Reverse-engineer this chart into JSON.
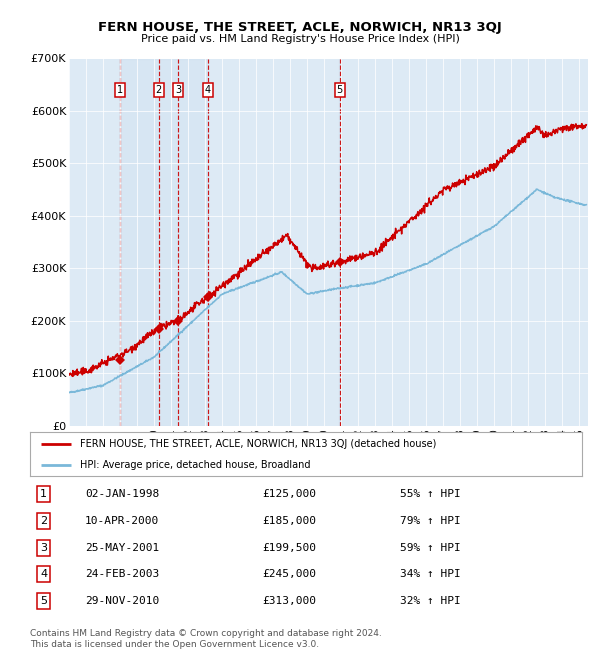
{
  "title": "FERN HOUSE, THE STREET, ACLE, NORWICH, NR13 3QJ",
  "subtitle": "Price paid vs. HM Land Registry's House Price Index (HPI)",
  "legend_line1": "FERN HOUSE, THE STREET, ACLE, NORWICH, NR13 3QJ (detached house)",
  "legend_line2": "HPI: Average price, detached house, Broadland",
  "footer": "Contains HM Land Registry data © Crown copyright and database right 2024.\nThis data is licensed under the Open Government Licence v3.0.",
  "hpi_color": "#7ab8d9",
  "price_color": "#cc0000",
  "background_color": "#ddeaf5",
  "transactions": [
    {
      "num": 1,
      "date": "02-JAN-1998",
      "price": 125000,
      "year": 1998.02,
      "pct": "55%",
      "dir": "↑"
    },
    {
      "num": 2,
      "date": "10-APR-2000",
      "price": 185000,
      "year": 2000.27,
      "pct": "79%",
      "dir": "↑"
    },
    {
      "num": 3,
      "date": "25-MAY-2001",
      "price": 199500,
      "year": 2001.4,
      "pct": "59%",
      "dir": "↑"
    },
    {
      "num": 4,
      "date": "24-FEB-2003",
      "price": 245000,
      "year": 2003.15,
      "pct": "34%",
      "dir": "↑"
    },
    {
      "num": 5,
      "date": "29-NOV-2010",
      "price": 313000,
      "year": 2010.91,
      "pct": "32%",
      "dir": "↑"
    }
  ],
  "ylim": [
    0,
    700000
  ],
  "xlim_start": 1995.0,
  "xlim_end": 2025.5,
  "yticks": [
    0,
    100000,
    200000,
    300000,
    400000,
    500000,
    600000,
    700000
  ],
  "ytick_labels": [
    "£0",
    "£100K",
    "£200K",
    "£300K",
    "£400K",
    "£500K",
    "£600K",
    "£700K"
  ]
}
